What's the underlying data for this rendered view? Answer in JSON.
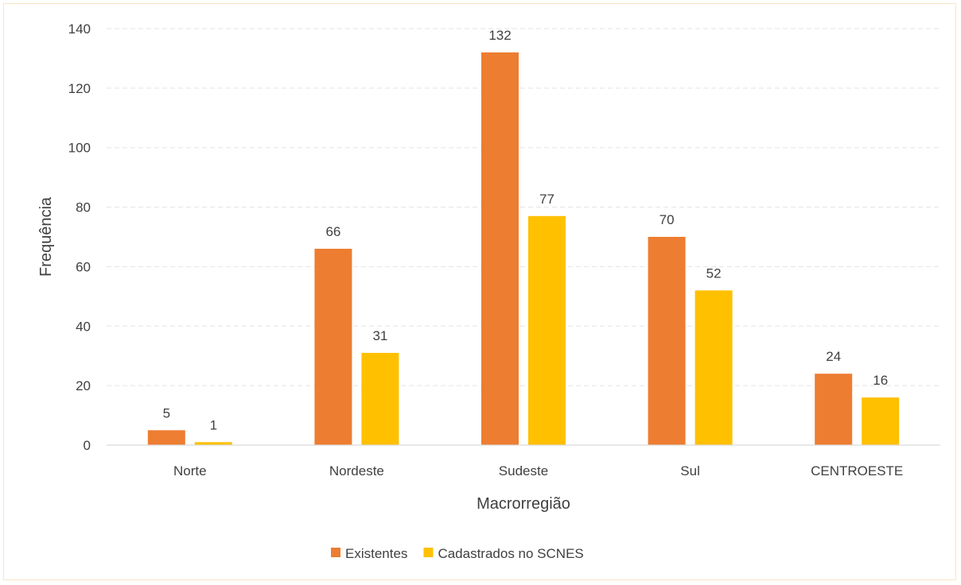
{
  "chart_data": {
    "type": "bar",
    "title": "",
    "xlabel": "Macrorregião",
    "ylabel": "Frequência",
    "ylim": [
      0,
      140
    ],
    "yticks": [
      0,
      20,
      40,
      60,
      80,
      100,
      120,
      140
    ],
    "grid": true,
    "legend_position": "bottom",
    "categories": [
      "Norte",
      "Nordeste",
      "Sudeste",
      "Sul",
      "CENTROESTE"
    ],
    "series": [
      {
        "name": "Existentes",
        "color": "#ed7d31",
        "values": [
          5,
          66,
          132,
          70,
          24
        ]
      },
      {
        "name": "Cadastrados no SCNES",
        "color": "#ffc000",
        "values": [
          1,
          31,
          77,
          52,
          16
        ]
      }
    ]
  }
}
